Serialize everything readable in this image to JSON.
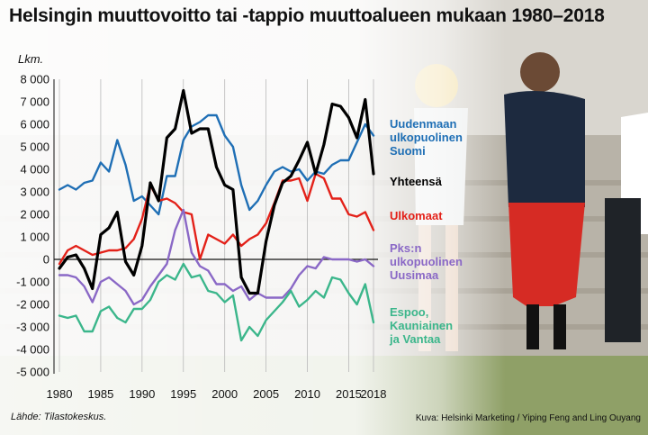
{
  "title": "Helsingin muuttovoitto tai -tappio muuttoalueen mukaan 1980–2018",
  "source": "Lähde: Tilastokeskus.",
  "credit": "Kuva: Helsinki Marketing / Yiping Feng and Ling Ouyang",
  "chart_data": {
    "type": "line",
    "ylabel": "Lkm.",
    "ylim": [
      -5000,
      8000
    ],
    "yticks": [
      8000,
      7000,
      6000,
      5000,
      4000,
      3000,
      2000,
      1000,
      0,
      -1000,
      -2000,
      -3000,
      -4000,
      -5000
    ],
    "ytick_labels": [
      "8 000",
      "7 000",
      "6 000",
      "5 000",
      "4 000",
      "3 000",
      "2 000",
      "1 000",
      "0",
      "-1 000",
      "-2 000",
      "-3 000",
      "-4 000",
      "-5 000"
    ],
    "xlim": [
      1980,
      2018
    ],
    "xticks": [
      1980,
      1985,
      1990,
      1995,
      2000,
      2005,
      2010,
      2015,
      2018
    ],
    "grid": "vertical",
    "x": [
      1980,
      1981,
      1982,
      1983,
      1984,
      1985,
      1986,
      1987,
      1988,
      1989,
      1990,
      1991,
      1992,
      1993,
      1994,
      1995,
      1996,
      1997,
      1998,
      1999,
      2000,
      2001,
      2002,
      2003,
      2004,
      2005,
      2006,
      2007,
      2008,
      2009,
      2010,
      2011,
      2012,
      2013,
      2014,
      2015,
      2016,
      2017,
      2018
    ],
    "series": [
      {
        "name": "Uudenmaan ulkopuolinen Suomi",
        "color": "#1f6fb5",
        "label_lines": [
          "Uudenmaan",
          "ulkopuolinen",
          "Suomi"
        ],
        "values": [
          3100,
          3300,
          3100,
          3400,
          3500,
          4300,
          3900,
          5300,
          4200,
          2600,
          2800,
          2400,
          2000,
          3700,
          3700,
          5300,
          5900,
          6100,
          6400,
          6400,
          5500,
          5000,
          3300,
          2200,
          2600,
          3300,
          3900,
          4100,
          3900,
          4000,
          3500,
          3900,
          3800,
          4200,
          4400,
          4400,
          5200,
          6000,
          5500
        ]
      },
      {
        "name": "Yhteensä",
        "color": "#000000",
        "label_lines": [
          "Yhteensä"
        ],
        "values": [
          -400,
          100,
          200,
          -400,
          -1300,
          1100,
          1400,
          2100,
          -100,
          -700,
          600,
          3400,
          2600,
          5400,
          5800,
          7500,
          5600,
          5800,
          5800,
          4100,
          3300,
          3100,
          -800,
          -1500,
          -1500,
          800,
          2400,
          3400,
          3700,
          4400,
          5200,
          3800,
          5100,
          6900,
          6800,
          6300,
          5400,
          7100,
          3800
        ]
      },
      {
        "name": "Ulkomaat",
        "color": "#e32119",
        "label_lines": [
          "Ulkomaat"
        ],
        "values": [
          -200,
          400,
          600,
          400,
          200,
          300,
          400,
          400,
          500,
          900,
          1800,
          3300,
          2600,
          2700,
          2500,
          2100,
          2000,
          0,
          1100,
          900,
          700,
          1100,
          600,
          900,
          1100,
          1600,
          2500,
          3500,
          3500,
          3600,
          2600,
          3800,
          3600,
          2700,
          2700,
          2000,
          1900,
          2100,
          1300
        ]
      },
      {
        "name": "Pks:n ulkopuolinen Uusimaa",
        "color": "#8a68c6",
        "label_lines": [
          "Pks:n",
          "ulkopuolinen",
          "Uusimaa"
        ],
        "values": [
          -700,
          -700,
          -800,
          -1200,
          -1900,
          -1000,
          -800,
          -1100,
          -1400,
          -2000,
          -1800,
          -1200,
          -700,
          -200,
          1300,
          2200,
          300,
          -300,
          -500,
          -1100,
          -1100,
          -1400,
          -1200,
          -1800,
          -1500,
          -1700,
          -1700,
          -1700,
          -1300,
          -700,
          -300,
          -400,
          100,
          0,
          0,
          0,
          -100,
          0,
          -300
        ]
      },
      {
        "name": "Espoo, Kauniainen ja Vantaa",
        "color": "#3bb68b",
        "label_lines": [
          "Espoo,",
          "Kauniainen",
          "ja Vantaa"
        ],
        "values": [
          -2500,
          -2600,
          -2500,
          -3200,
          -3200,
          -2300,
          -2100,
          -2600,
          -2800,
          -2200,
          -2200,
          -1800,
          -1000,
          -700,
          -900,
          -200,
          -800,
          -700,
          -1400,
          -1500,
          -1900,
          -1600,
          -3600,
          -3000,
          -3400,
          -2700,
          -2300,
          -1900,
          -1400,
          -2100,
          -1800,
          -1400,
          -1700,
          -800,
          -900,
          -1500,
          -2000,
          -1100,
          -2800
        ]
      }
    ]
  }
}
